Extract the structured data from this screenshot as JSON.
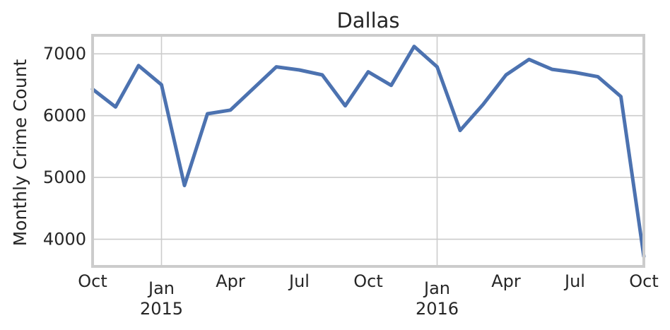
{
  "chart_data": {
    "type": "line",
    "title": "Dallas",
    "xlabel": "",
    "ylabel": "Monthly Crime Count",
    "grid": true,
    "x": [
      "2014-10",
      "2014-11",
      "2014-12",
      "2015-01",
      "2015-02",
      "2015-03",
      "2015-04",
      "2015-05",
      "2015-06",
      "2015-07",
      "2015-08",
      "2015-09",
      "2015-10",
      "2015-11",
      "2015-12",
      "2016-01",
      "2016-02",
      "2016-03",
      "2016-04",
      "2016-05",
      "2016-06",
      "2016-07",
      "2016-08",
      "2016-09",
      "2016-10"
    ],
    "series": [
      {
        "color": "#4c72b0",
        "values": [
          6430,
          6140,
          6810,
          6500,
          4870,
          6030,
          6090,
          6440,
          6790,
          6740,
          6660,
          6160,
          6710,
          6490,
          7120,
          6790,
          5760,
          6180,
          6660,
          6910,
          6750,
          6700,
          6630,
          6310,
          3720
        ]
      }
    ],
    "ylim": [
      3560,
      7300
    ],
    "yticks": [
      4000,
      5000,
      6000,
      7000
    ],
    "yticklabels": [
      "4000",
      "5000",
      "6000",
      "7000"
    ],
    "xticks": [
      {
        "at": "2014-10",
        "label": "Oct",
        "year": ""
      },
      {
        "at": "2015-01",
        "label": "Jan",
        "year": "2015"
      },
      {
        "at": "2015-04",
        "label": "Apr",
        "year": ""
      },
      {
        "at": "2015-07",
        "label": "Jul",
        "year": ""
      },
      {
        "at": "2015-10",
        "label": "Oct",
        "year": ""
      },
      {
        "at": "2016-01",
        "label": "Jan",
        "year": "2016"
      },
      {
        "at": "2016-04",
        "label": "Apr",
        "year": ""
      },
      {
        "at": "2016-07",
        "label": "Jul",
        "year": ""
      },
      {
        "at": "2016-10",
        "label": "Oct",
        "year": ""
      }
    ]
  }
}
